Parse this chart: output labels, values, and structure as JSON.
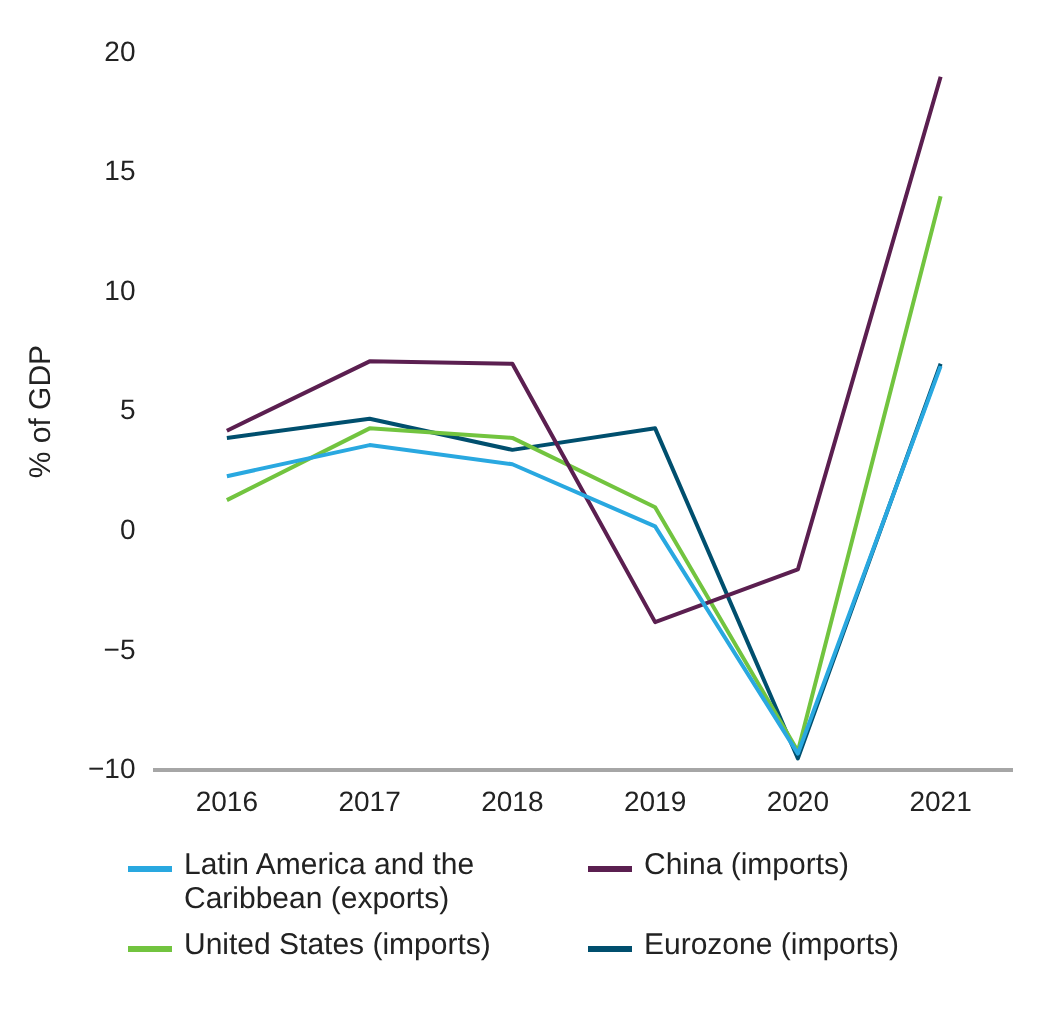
{
  "chart_data": {
    "type": "line",
    "ylabel": "% of GDP",
    "categories": [
      "2016",
      "2017",
      "2018",
      "2019",
      "2020",
      "2021"
    ],
    "series": [
      {
        "name": "Latin America and the Caribbean (exports)",
        "color": "#29a8e0",
        "values": [
          2.3,
          3.6,
          2.8,
          0.2,
          -9.3,
          6.9
        ]
      },
      {
        "name": "China (imports)",
        "color": "#5b1f50",
        "values": [
          4.2,
          7.1,
          7.0,
          -3.8,
          -1.6,
          19.0
        ]
      },
      {
        "name": "United States (imports)",
        "color": "#72c43f",
        "values": [
          1.3,
          4.3,
          3.9,
          1.0,
          -9.2,
          14.0
        ]
      },
      {
        "name": "Eurozone (imports)",
        "color": "#004f6e",
        "values": [
          3.9,
          4.7,
          3.4,
          4.3,
          -9.5,
          7.0
        ]
      }
    ],
    "ylim": [
      -10,
      20
    ],
    "yticks": [
      -10,
      -5,
      0,
      5,
      10,
      15,
      20
    ],
    "grid": false,
    "legend": "bottom",
    "marker": "none",
    "line_style": "solid"
  }
}
